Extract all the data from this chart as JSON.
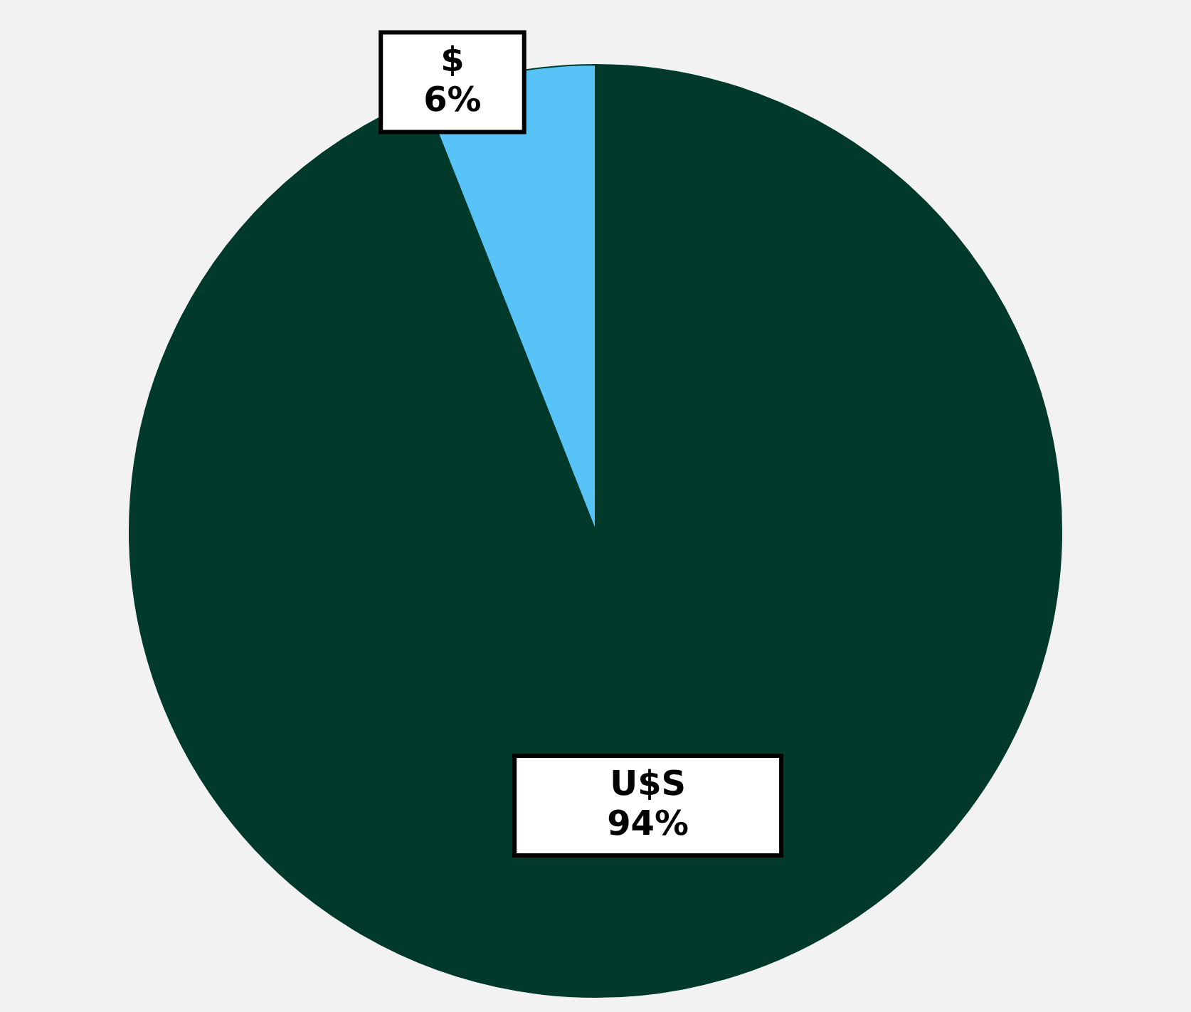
{
  "chart_data": {
    "type": "pie",
    "categories": [
      "$",
      "U$S"
    ],
    "values": [
      6,
      94
    ],
    "colors": [
      "#57c3f7",
      "#01392b"
    ],
    "value_labels": [
      "6%",
      "94%"
    ],
    "legend": false
  }
}
